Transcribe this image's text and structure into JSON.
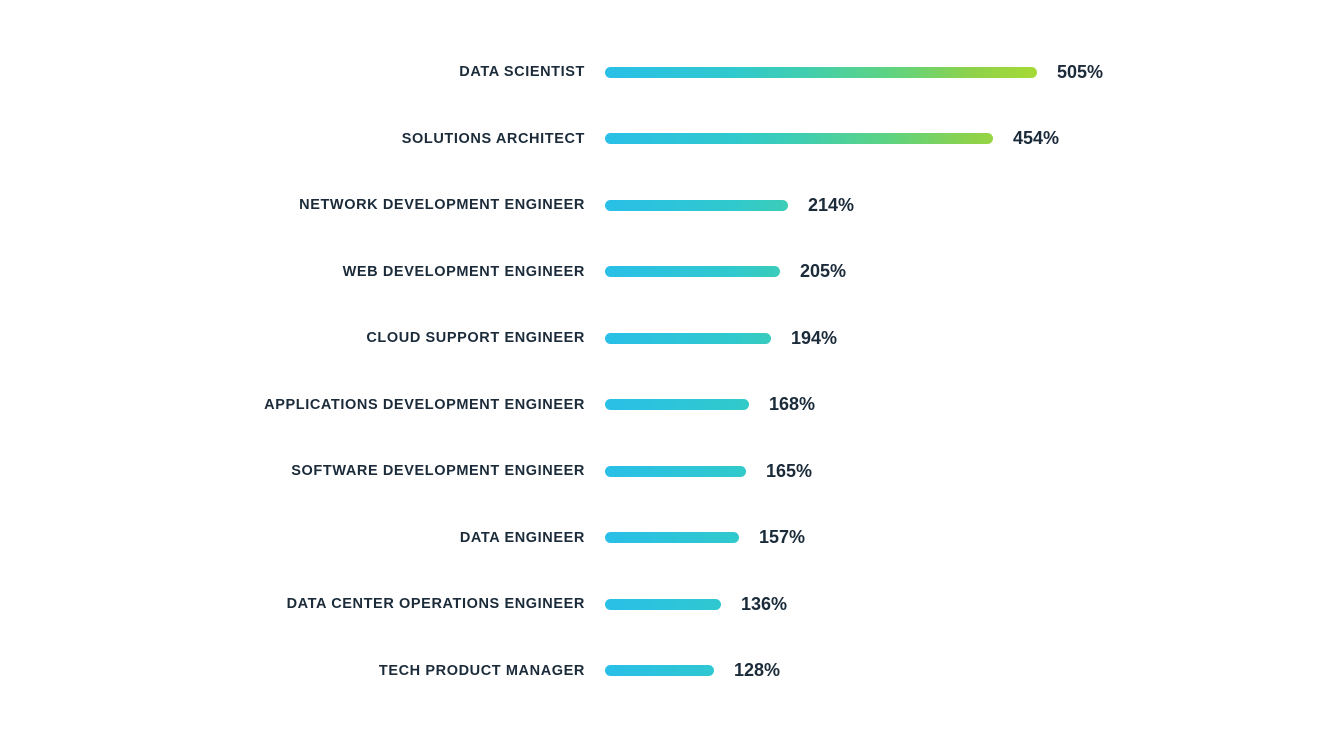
{
  "chart_data": {
    "type": "bar",
    "orientation": "horizontal",
    "title": "",
    "xlabel": "",
    "ylabel": "",
    "value_suffix": "%",
    "xlim": [
      0,
      505
    ],
    "grid": false,
    "legend": false,
    "bar_gradient": [
      "#29bfe8",
      "#3fceb2",
      "#a6da35"
    ],
    "label_color": "#1b2b3a",
    "categories": [
      "DATA SCIENTIST",
      "SOLUTIONS ARCHITECT",
      "NETWORK DEVELOPMENT ENGINEER",
      "WEB DEVELOPMENT ENGINEER",
      "CLOUD SUPPORT ENGINEER",
      "APPLICATIONS DEVELOPMENT ENGINEER",
      "SOFTWARE DEVELOPMENT ENGINEER",
      "DATA ENGINEER",
      "DATA CENTER OPERATIONS ENGINEER",
      "TECH PRODUCT MANAGER"
    ],
    "values": [
      505,
      454,
      214,
      205,
      194,
      168,
      165,
      157,
      136,
      128
    ],
    "value_labels": [
      "505%",
      "454%",
      "214%",
      "205%",
      "194%",
      "168%",
      "165%",
      "157%",
      "136%",
      "128%"
    ]
  }
}
